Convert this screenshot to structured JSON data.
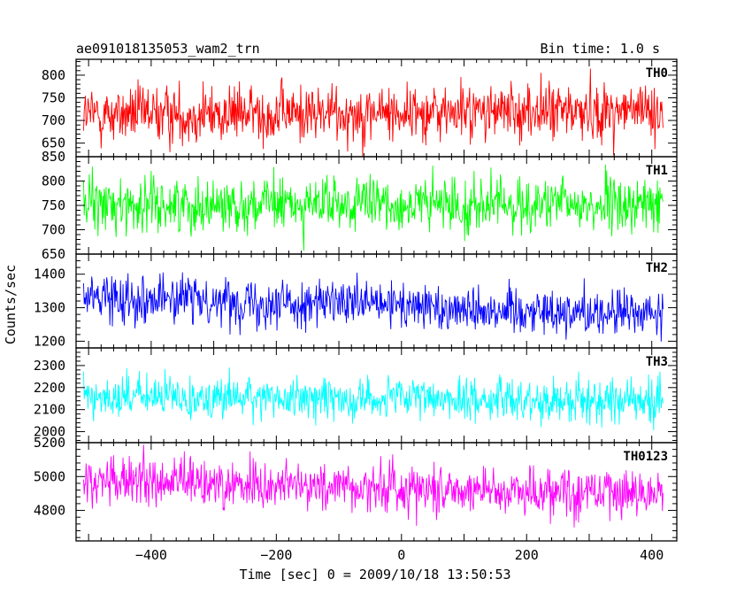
{
  "header": {
    "title": "ae091018135053_wam2_trn",
    "bin_time": "Bin time: 1.0 s"
  },
  "chart_data": {
    "type": "line",
    "title": "ae091018135053_wam2_trn",
    "subtitle": "Bin time: 1.0 s",
    "xlabel": "Time [sec] 0 = 2009/10/18 13:50:53",
    "ylabel": "Counts/sec",
    "xlim": [
      -520,
      440
    ],
    "xticks": [
      -400,
      -200,
      0,
      200,
      400
    ],
    "x_range_data": [
      -508,
      418
    ],
    "bin_time": 1.0,
    "grid": false,
    "panels": [
      {
        "name": "TH0",
        "color": "#ff0000",
        "ylim": [
          620,
          835
        ],
        "yticks": [
          650,
          700,
          750,
          800
        ],
        "mean": 712,
        "spread": 32,
        "trend_start": 712,
        "trend_end": 722
      },
      {
        "name": "TH1",
        "color": "#00ff00",
        "ylim": [
          650,
          850
        ],
        "yticks": [
          650,
          700,
          750,
          800,
          850
        ],
        "mean": 750,
        "spread": 28,
        "trend_start": 752,
        "trend_end": 750
      },
      {
        "name": "TH2",
        "color": "#0000ff",
        "ylim": [
          1180,
          1460
        ],
        "yticks": [
          1200,
          1300,
          1400
        ],
        "mean": 1300,
        "spread": 35,
        "trend_start": 1335,
        "trend_end": 1280
      },
      {
        "name": "TH3",
        "color": "#00ffff",
        "ylim": [
          1950,
          2380
        ],
        "yticks": [
          2000,
          2100,
          2200,
          2300
        ],
        "mean": 2150,
        "spread": 48,
        "trend_start": 2160,
        "trend_end": 2140
      },
      {
        "name": "TH0123",
        "color": "#ff00ff",
        "ylim": [
          4620,
          5200
        ],
        "yticks": [
          4800,
          5000,
          5200
        ],
        "mean": 4930,
        "spread": 75,
        "trend_start": 4975,
        "trend_end": 4900
      }
    ]
  }
}
